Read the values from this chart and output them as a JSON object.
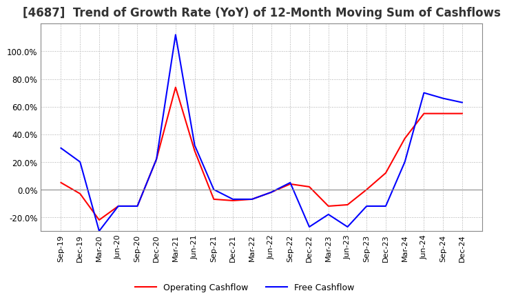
{
  "title": "[4687]  Trend of Growth Rate (YoY) of 12-Month Moving Sum of Cashflows",
  "title_fontsize": 12,
  "ylim": [
    -0.3,
    1.2
  ],
  "yticks": [
    -0.2,
    0.0,
    0.2,
    0.4,
    0.6,
    0.8,
    1.0
  ],
  "background_color": "#ffffff",
  "grid_color": "#aaaaaa",
  "x_labels": [
    "Sep-19",
    "Dec-19",
    "Mar-20",
    "Jun-20",
    "Sep-20",
    "Dec-20",
    "Mar-21",
    "Jun-21",
    "Sep-21",
    "Dec-21",
    "Mar-22",
    "Jun-22",
    "Sep-22",
    "Dec-22",
    "Mar-23",
    "Jun-23",
    "Sep-23",
    "Dec-23",
    "Mar-24",
    "Jun-24",
    "Sep-24",
    "Dec-24"
  ],
  "operating_cashflow": [
    0.05,
    -0.03,
    -0.22,
    -0.12,
    -0.12,
    0.22,
    0.74,
    0.28,
    -0.07,
    -0.08,
    -0.07,
    -0.02,
    0.04,
    0.02,
    -0.12,
    -0.11,
    0.0,
    0.12,
    0.37,
    0.55,
    0.55,
    0.55
  ],
  "free_cashflow": [
    0.3,
    0.2,
    -0.3,
    -0.12,
    -0.12,
    0.22,
    1.12,
    0.32,
    0.0,
    -0.07,
    -0.07,
    -0.02,
    0.05,
    -0.27,
    -0.18,
    -0.27,
    -0.12,
    -0.12,
    0.2,
    0.7,
    0.66,
    0.63
  ],
  "op_color": "#ff0000",
  "free_color": "#0000ff",
  "line_width": 1.5,
  "border_color": "#888888"
}
